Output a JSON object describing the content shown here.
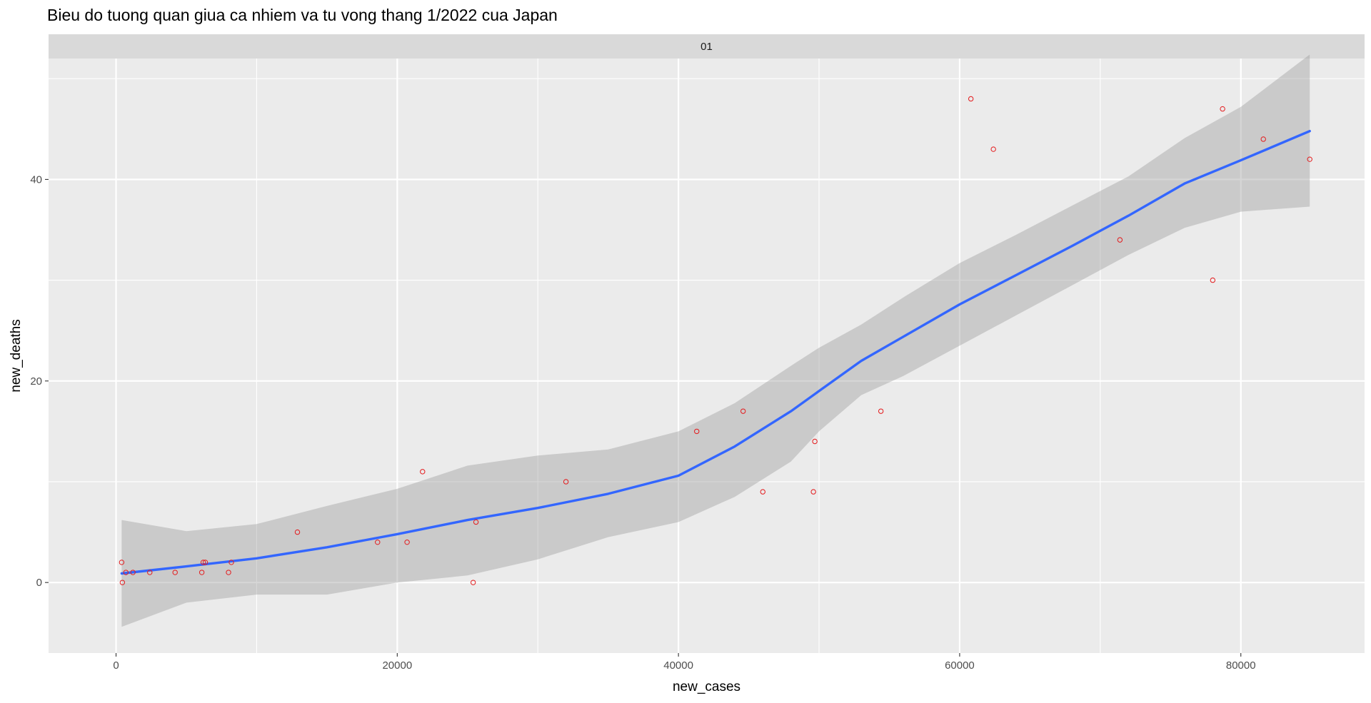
{
  "chart_data": {
    "type": "scatter",
    "title": "Bieu do tuong quan giua ca nhiem va tu vong thang 1/2022 cua Japan",
    "facet_label": "01",
    "xlabel": "new_cases",
    "ylabel": "new_deaths",
    "xlim": [
      -4800,
      88800
    ],
    "ylim": [
      -7,
      52
    ],
    "x_ticks": [
      0,
      20000,
      40000,
      60000,
      80000
    ],
    "x_tick_labels": [
      "0",
      "20000",
      "40000",
      "60000",
      "80000"
    ],
    "y_ticks": [
      0,
      20,
      40
    ],
    "y_tick_labels": [
      "0",
      "20",
      "40"
    ],
    "grid": true,
    "point_color": "#e41a1c",
    "line_color": "#3366ff",
    "band_color": "#999999",
    "panel_bg": "#ebebeb",
    "strip_bg": "#d9d9d9",
    "points": [
      {
        "x": 400,
        "y": 2
      },
      {
        "x": 450,
        "y": 0
      },
      {
        "x": 700,
        "y": 1
      },
      {
        "x": 1200,
        "y": 1
      },
      {
        "x": 2400,
        "y": 1
      },
      {
        "x": 4200,
        "y": 1
      },
      {
        "x": 6100,
        "y": 1
      },
      {
        "x": 6200,
        "y": 2
      },
      {
        "x": 6350,
        "y": 2
      },
      {
        "x": 8000,
        "y": 1
      },
      {
        "x": 8200,
        "y": 2
      },
      {
        "x": 12900,
        "y": 5
      },
      {
        "x": 18600,
        "y": 4
      },
      {
        "x": 20700,
        "y": 4
      },
      {
        "x": 21800,
        "y": 11
      },
      {
        "x": 25400,
        "y": 0
      },
      {
        "x": 25600,
        "y": 6
      },
      {
        "x": 32000,
        "y": 10
      },
      {
        "x": 41300,
        "y": 15
      },
      {
        "x": 44600,
        "y": 17
      },
      {
        "x": 46000,
        "y": 9
      },
      {
        "x": 49600,
        "y": 9
      },
      {
        "x": 49700,
        "y": 14
      },
      {
        "x": 54400,
        "y": 17
      },
      {
        "x": 60800,
        "y": 48
      },
      {
        "x": 62400,
        "y": 43
      },
      {
        "x": 71400,
        "y": 34
      },
      {
        "x": 78000,
        "y": 30
      },
      {
        "x": 78700,
        "y": 47
      },
      {
        "x": 81600,
        "y": 44
      },
      {
        "x": 84900,
        "y": 42
      }
    ],
    "smooth": {
      "x": [
        400,
        5000,
        10000,
        15000,
        20000,
        25000,
        30000,
        35000,
        40000,
        44000,
        48000,
        50000,
        53000,
        56000,
        60000,
        64000,
        68000,
        72000,
        76000,
        80000,
        84900
      ],
      "y": [
        0.9,
        1.6,
        2.4,
        3.5,
        4.8,
        6.2,
        7.4,
        8.8,
        10.6,
        13.5,
        17.0,
        19.0,
        22.0,
        24.4,
        27.6,
        30.5,
        33.4,
        36.4,
        39.6,
        41.9,
        44.8
      ],
      "lower": [
        -4.4,
        -2.0,
        -1.2,
        -1.2,
        0.0,
        0.7,
        2.3,
        4.5,
        6.0,
        8.5,
        12.0,
        15.0,
        18.6,
        20.5,
        23.5,
        26.5,
        29.5,
        32.5,
        35.2,
        36.8,
        37.3
      ],
      "upper": [
        6.2,
        5.1,
        5.8,
        7.6,
        9.3,
        11.6,
        12.6,
        13.2,
        15.0,
        17.8,
        21.5,
        23.3,
        25.6,
        28.3,
        31.7,
        34.5,
        37.4,
        40.3,
        44.1,
        47.2,
        52.4
      ]
    }
  }
}
